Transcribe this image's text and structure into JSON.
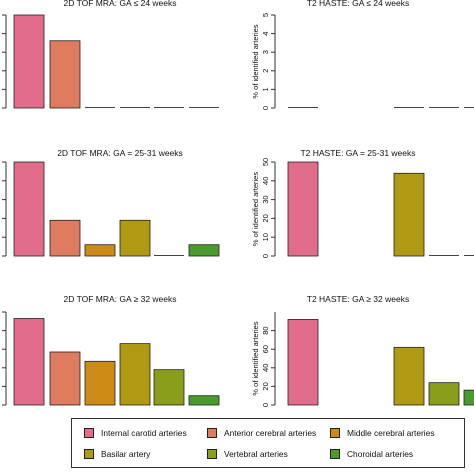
{
  "chart_data": [
    {
      "type": "bar",
      "title": "2D TOF MRA: GA ≤ 24 weeks",
      "ylabel": "",
      "categories": [
        "Internal carotid arteries",
        "Anterior cerebral arteries",
        "Middle cerebral arteries",
        "Basilar artery",
        "Vertebral arteries",
        "Choroidal arteries"
      ],
      "values": [
        65,
        47,
        0,
        0,
        0,
        0
      ],
      "yticks": [],
      "ylim": [
        0,
        70
      ]
    },
    {
      "type": "bar",
      "title": "T2 HASTE: GA ≤ 24 weeks",
      "ylabel": "% of identified arteries",
      "categories": [
        "Internal carotid arteries",
        "Anterior cerebral arteries",
        "Middle cerebral arteries",
        "Basilar artery",
        "Vertebral arteries",
        "Choroidal arteries"
      ],
      "values": [
        0,
        null,
        null,
        0,
        0,
        0
      ],
      "yticks": [
        "0",
        "1",
        "2",
        "3",
        "4",
        "5"
      ],
      "ylim": [
        0,
        5
      ]
    },
    {
      "type": "bar",
      "title": "2D TOF MRA: GA = 25-31 weeks",
      "ylabel": "",
      "categories": [
        "Internal carotid arteries",
        "Anterior cerebral arteries",
        "Middle cerebral arteries",
        "Basilar artery",
        "Vertebral arteries",
        "Choroidal arteries"
      ],
      "values": [
        50,
        19,
        6,
        19,
        0,
        6
      ],
      "yticks": [],
      "ylim": [
        0,
        50
      ]
    },
    {
      "type": "bar",
      "title": "T2 HASTE: GA = 25-31 weeks",
      "ylabel": "% of identified arteries",
      "categories": [
        "Internal carotid arteries",
        "Anterior cerebral arteries",
        "Middle cerebral arteries",
        "Basilar artery",
        "Vertebral arteries",
        "Choroidal arteries"
      ],
      "values": [
        50,
        null,
        null,
        44,
        0,
        0
      ],
      "yticks": [
        "0",
        "10",
        "20",
        "30",
        "40",
        "50"
      ],
      "ylim": [
        0,
        50
      ]
    },
    {
      "type": "bar",
      "title": "2D TOF MRA: GA ≥ 32 weeks",
      "ylabel": "",
      "categories": [
        "Internal carotid arteries",
        "Anterior cerebral arteries",
        "Middle cerebral arteries",
        "Basilar artery",
        "Vertebral arteries",
        "Choroidal arteries"
      ],
      "values": [
        93,
        57,
        47,
        66,
        38,
        10
      ],
      "yticks": [],
      "ylim": [
        0,
        100
      ]
    },
    {
      "type": "bar",
      "title": "T2 HASTE: GA ≥ 32 weeks",
      "ylabel": "% of identified arteries",
      "categories": [
        "Internal carotid arteries",
        "Anterior cerebral arteries",
        "Middle cerebral arteries",
        "Basilar artery",
        "Vertebral arteries",
        "Choroidal arteries"
      ],
      "values": [
        92,
        null,
        null,
        62,
        24,
        16
      ],
      "yticks": [
        "0",
        "20",
        "40",
        "60",
        "80"
      ],
      "ylim": [
        0,
        92
      ]
    }
  ],
  "series_colors": [
    "#e26d8b",
    "#dd7c5e",
    "#cc8b16",
    "#b19a13",
    "#8a9e1c",
    "#4a9d2c"
  ],
  "legend": {
    "items": [
      {
        "label": "Internal carotid arteries",
        "color": "#e26d8b"
      },
      {
        "label": "Anterior cerebral arteries",
        "color": "#dd7c5e"
      },
      {
        "label": "Middle cerebral arteries",
        "color": "#cc8b16"
      },
      {
        "label": "Basilar artery",
        "color": "#b19a13"
      },
      {
        "label": "Vertebral arteries",
        "color": "#8a9e1c"
      },
      {
        "label": "Choroidal arteries",
        "color": "#4a9d2c"
      }
    ]
  }
}
